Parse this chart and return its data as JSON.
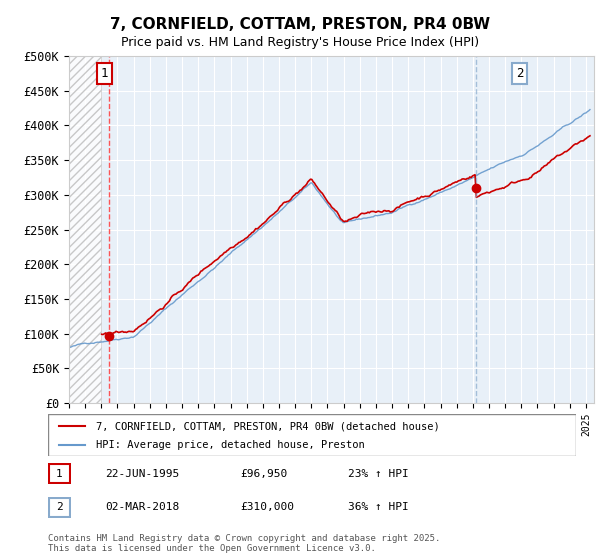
{
  "title": "7, CORNFIELD, COTTAM, PRESTON, PR4 0BW",
  "subtitle": "Price paid vs. HM Land Registry's House Price Index (HPI)",
  "ylabel_ticks": [
    "£0",
    "£50K",
    "£100K",
    "£150K",
    "£200K",
    "£250K",
    "£300K",
    "£350K",
    "£400K",
    "£450K",
    "£500K"
  ],
  "ylim": [
    0,
    500000
  ],
  "xlim_start": 1993.0,
  "xlim_end": 2025.5,
  "line1_color": "#cc0000",
  "line2_color": "#6699cc",
  "marker1_date": 1995.47,
  "marker1_value": 96950,
  "marker2_date": 2018.17,
  "marker2_value": 310000,
  "annotation1_label": "1",
  "annotation2_label": "2",
  "legend_line1": "7, CORNFIELD, COTTAM, PRESTON, PR4 0BW (detached house)",
  "legend_line2": "HPI: Average price, detached house, Preston",
  "table_row1": [
    "1",
    "22-JUN-1995",
    "£96,950",
    "23% ↑ HPI"
  ],
  "table_row2": [
    "2",
    "02-MAR-2018",
    "£310,000",
    "36% ↑ HPI"
  ],
  "footnote": "Contains HM Land Registry data © Crown copyright and database right 2025.\nThis data is licensed under the Open Government Licence v3.0.",
  "bg_color": "#ffffff",
  "plot_bg_color": "#e8f0f8",
  "grid_color": "#ffffff",
  "hatch_color": "#cccccc",
  "vline1_color": "#ff4444",
  "vline2_color": "#88aacc"
}
